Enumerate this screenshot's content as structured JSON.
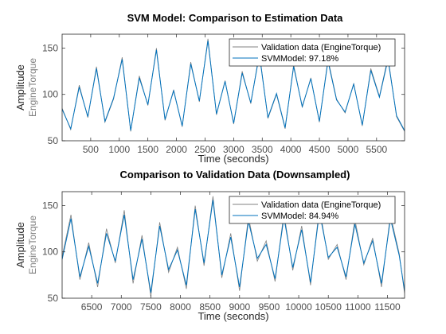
{
  "chart_data": [
    {
      "type": "line",
      "title": "SVM Model: Comparison to Estimation Data",
      "xlabel": "Time (seconds)",
      "ylabel": "Amplitude",
      "ylabel_sub": "EngineTorque",
      "xlim": [
        0,
        5990
      ],
      "ylim": [
        50,
        165
      ],
      "xticks": [
        "500",
        "1000",
        "1500",
        "2000",
        "2500",
        "3000",
        "3500",
        "4000",
        "4500",
        "5000",
        "5500"
      ],
      "xtick_values": [
        500,
        1000,
        1500,
        2000,
        2500,
        3000,
        3500,
        4000,
        4500,
        5000,
        5500
      ],
      "yticks": [
        "50",
        "100",
        "150"
      ],
      "ytick_values": [
        50,
        100,
        150
      ],
      "legend_position": "top-right",
      "series": [
        {
          "name": "Validation data (EngineTorque)",
          "color": "#808080",
          "x": [
            0,
            150,
            300,
            450,
            600,
            750,
            900,
            1050,
            1200,
            1350,
            1500,
            1650,
            1800,
            1950,
            2100,
            2250,
            2400,
            2550,
            2700,
            2850,
            3000,
            3150,
            3300,
            3450,
            3600,
            3750,
            3900,
            4050,
            4200,
            4350,
            4500,
            4650,
            4800,
            4950,
            5100,
            5250,
            5400,
            5550,
            5700,
            5850,
            5990
          ],
          "y": [
            85,
            62,
            110,
            75,
            130,
            70,
            95,
            140,
            60,
            120,
            88,
            150,
            72,
            105,
            65,
            135,
            92,
            160,
            78,
            115,
            68,
            125,
            90,
            145,
            74,
            100,
            63,
            132,
            86,
            118,
            70,
            138,
            95,
            80,
            112,
            66,
            128,
            98,
            140,
            76,
            60
          ]
        },
        {
          "name": "SVMModel: 97.18%",
          "color": "#0072bd",
          "x": [
            0,
            150,
            300,
            450,
            600,
            750,
            900,
            1050,
            1200,
            1350,
            1500,
            1650,
            1800,
            1950,
            2100,
            2250,
            2400,
            2550,
            2700,
            2850,
            3000,
            3150,
            3300,
            3450,
            3600,
            3750,
            3900,
            4050,
            4200,
            4350,
            4500,
            4650,
            4800,
            4950,
            5100,
            5250,
            5400,
            5550,
            5700,
            5850,
            5990
          ],
          "y": [
            84,
            63,
            108,
            76,
            128,
            71,
            96,
            138,
            61,
            118,
            89,
            148,
            73,
            104,
            66,
            133,
            93,
            158,
            79,
            114,
            69,
            123,
            91,
            143,
            75,
            101,
            64,
            130,
            87,
            117,
            71,
            136,
            94,
            81,
            111,
            67,
            126,
            97,
            138,
            77,
            61
          ]
        }
      ],
      "annotations": []
    },
    {
      "type": "line",
      "title": "Comparison to Validation Data (Downsampled)",
      "xlabel": "Time (seconds)",
      "ylabel": "Amplitude",
      "ylabel_sub": "EngineTorque",
      "xlim": [
        6000,
        11790
      ],
      "ylim": [
        50,
        165
      ],
      "xticks": [
        "6500",
        "7000",
        "7500",
        "8000",
        "8500",
        "9000",
        "9500",
        "10000",
        "10500",
        "11000",
        "11500"
      ],
      "xtick_values": [
        6500,
        7000,
        7500,
        8000,
        8500,
        9000,
        9500,
        10000,
        10500,
        11000,
        11500
      ],
      "yticks": [
        "50",
        "100",
        "150"
      ],
      "ytick_values": [
        50,
        100,
        150
      ],
      "legend_position": "top-right",
      "series": [
        {
          "name": "Validation data (EngineTorque)",
          "color": "#808080",
          "x": [
            6000,
            6150,
            6300,
            6450,
            6600,
            6750,
            6900,
            7050,
            7200,
            7350,
            7500,
            7650,
            7800,
            7950,
            8100,
            8250,
            8400,
            8550,
            8700,
            8850,
            9000,
            9150,
            9300,
            9450,
            9600,
            9750,
            9900,
            10050,
            10200,
            10350,
            10500,
            10650,
            10800,
            10950,
            11100,
            11250,
            11400,
            11550,
            11700,
            11790
          ],
          "y": [
            95,
            140,
            70,
            110,
            62,
            125,
            88,
            145,
            66,
            118,
            52,
            132,
            78,
            105,
            60,
            150,
            85,
            160,
            72,
            120,
            58,
            138,
            90,
            112,
            68,
            142,
            80,
            128,
            64,
            148,
            92,
            108,
            70,
            135,
            86,
            115,
            62,
            140,
            98,
            55
          ]
        },
        {
          "name": "SVMModel: 84.94%",
          "color": "#0072bd",
          "x": [
            6000,
            6150,
            6300,
            6450,
            6600,
            6750,
            6900,
            7050,
            7200,
            7350,
            7500,
            7650,
            7800,
            7950,
            8100,
            8250,
            8400,
            8550,
            8700,
            8850,
            9000,
            9150,
            9300,
            9450,
            9600,
            9750,
            9900,
            10050,
            10200,
            10350,
            10500,
            10650,
            10800,
            10950,
            11100,
            11250,
            11400,
            11550,
            11700,
            11790
          ],
          "y": [
            92,
            136,
            73,
            106,
            66,
            120,
            90,
            140,
            70,
            114,
            56,
            128,
            81,
            102,
            64,
            146,
            88,
            156,
            75,
            116,
            62,
            133,
            93,
            108,
            71,
            137,
            83,
            124,
            67,
            143,
            94,
            105,
            73,
            130,
            88,
            112,
            66,
            136,
            96,
            58
          ]
        }
      ],
      "annotations": []
    }
  ]
}
